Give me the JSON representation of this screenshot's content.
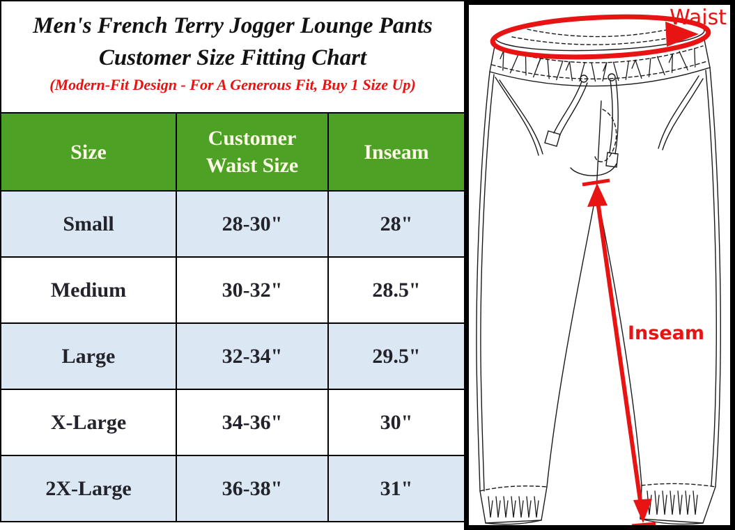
{
  "title": {
    "line1": "Men's French Terry Jogger Lounge Pants",
    "line2": "Customer Size Fitting Chart",
    "subtitle": "(Modern-Fit Design - For A Generous Fit, Buy 1 Size Up)"
  },
  "table": {
    "headers": [
      "Size",
      "Customer Waist Size",
      "Inseam"
    ],
    "rows": [
      [
        "Small",
        "28-30\"",
        "28\""
      ],
      [
        "Medium",
        "30-32\"",
        "28.5\""
      ],
      [
        "Large",
        "32-34\"",
        "29.5\""
      ],
      [
        "X-Large",
        "34-36\"",
        "30\""
      ],
      [
        "2X-Large",
        "36-38\"",
        "31\""
      ]
    ]
  },
  "diagram": {
    "waist_label": "Waist",
    "inseam_label": "Inseam"
  },
  "colors": {
    "header_green": "#4da226",
    "row_light_blue": "#dbe8f4",
    "header_text_ivory": "#fcf9e6",
    "body_text": "#23232b",
    "annotation_red": "#e81414",
    "subtitle_red": "#ee0f0f"
  },
  "chart_data": {
    "type": "table",
    "title": "Men's French Terry Jogger Lounge Pants Customer Size Fitting Chart",
    "note": "(Modern-Fit Design - For A Generous Fit, Buy 1 Size Up)",
    "columns": [
      "Size",
      "Customer Waist Size",
      "Inseam"
    ],
    "rows": [
      {
        "size": "Small",
        "customer_waist_size": "28-30\"",
        "inseam": "28\""
      },
      {
        "size": "Medium",
        "customer_waist_size": "30-32\"",
        "inseam": "28.5\""
      },
      {
        "size": "Large",
        "customer_waist_size": "32-34\"",
        "inseam": "29.5\""
      },
      {
        "size": "X-Large",
        "customer_waist_size": "34-36\"",
        "inseam": "30\""
      },
      {
        "size": "2X-Large",
        "customer_waist_size": "36-38\"",
        "inseam": "31\""
      }
    ],
    "annotations": [
      "Waist",
      "Inseam"
    ]
  }
}
